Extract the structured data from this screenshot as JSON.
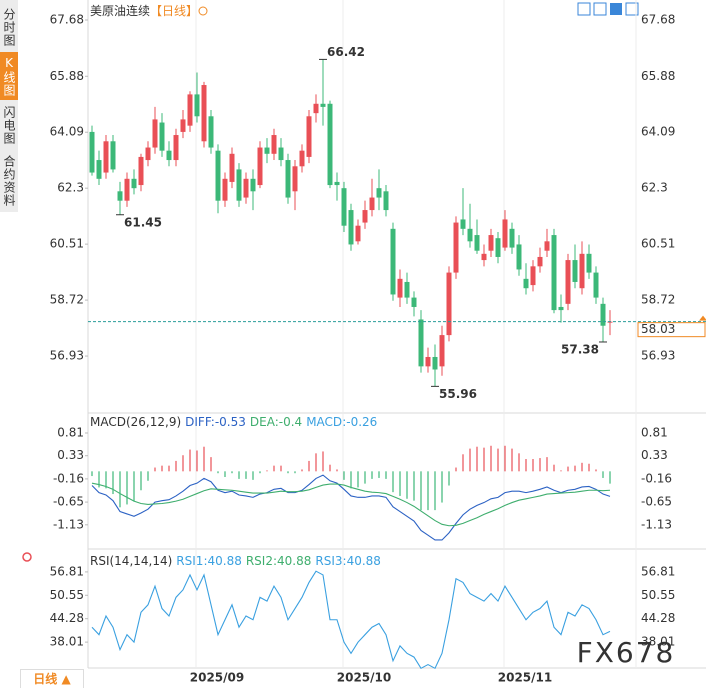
{
  "sidebar_tabs": [
    "分时图",
    "K线图",
    "闪电图",
    "合约资料"
  ],
  "period_tab": "日线 ▲",
  "watermark": "FX678",
  "legend_separator": ":",
  "chart_data": [
    {
      "type": "candlestick",
      "title": "美原油连续",
      "period": "【日线】",
      "up_color": "#e94f56",
      "down_color": "#3cb878",
      "categories": [
        null,
        null,
        null,
        null,
        null,
        null,
        null,
        null,
        null,
        null,
        null,
        null,
        null,
        null,
        null,
        "2025/09",
        null,
        null,
        null,
        null,
        null,
        null,
        null,
        null,
        null,
        null,
        null,
        null,
        null,
        null,
        null,
        null,
        null,
        null,
        null,
        null,
        "2025/10",
        null,
        null,
        null,
        null,
        null,
        null,
        null,
        null,
        null,
        null,
        null,
        null,
        null,
        null,
        null,
        null,
        null,
        null,
        null,
        null,
        null,
        null,
        "2025/11",
        null,
        null,
        null,
        null,
        null,
        null,
        null,
        null,
        null,
        null,
        null,
        null,
        null,
        null,
        null
      ],
      "candles": [
        [
          64.1,
          64.3,
          62.7,
          62.8
        ],
        [
          63.2,
          63.5,
          62.4,
          62.6
        ],
        [
          62.8,
          64.0,
          62.6,
          63.8
        ],
        [
          63.8,
          64.0,
          62.8,
          62.9
        ],
        [
          62.2,
          62.5,
          61.45,
          61.9
        ],
        [
          61.9,
          62.8,
          61.7,
          62.6
        ],
        [
          62.6,
          62.9,
          62.1,
          62.3
        ],
        [
          62.4,
          63.4,
          62.2,
          63.3
        ],
        [
          63.2,
          63.8,
          63.0,
          63.6
        ],
        [
          63.6,
          64.9,
          63.4,
          64.5
        ],
        [
          64.4,
          64.7,
          63.3,
          63.5
        ],
        [
          63.5,
          63.8,
          63.0,
          63.2
        ],
        [
          63.2,
          64.2,
          63.0,
          64.0
        ],
        [
          64.1,
          64.8,
          63.9,
          64.5
        ],
        [
          64.3,
          65.4,
          64.1,
          65.3
        ],
        [
          65.3,
          66.0,
          64.4,
          64.6
        ],
        [
          63.8,
          65.7,
          63.6,
          65.6
        ],
        [
          64.6,
          64.8,
          63.4,
          63.6
        ],
        [
          63.5,
          63.7,
          61.5,
          61.9
        ],
        [
          61.9,
          62.8,
          61.7,
          62.6
        ],
        [
          62.5,
          63.6,
          62.3,
          63.4
        ],
        [
          62.9,
          63.1,
          61.7,
          61.9
        ],
        [
          62.0,
          62.8,
          61.8,
          62.6
        ],
        [
          62.6,
          62.9,
          61.6,
          62.2
        ],
        [
          62.4,
          63.8,
          62.3,
          63.6
        ],
        [
          63.6,
          63.9,
          63.1,
          63.4
        ],
        [
          63.4,
          64.2,
          63.2,
          64.0
        ],
        [
          63.6,
          63.9,
          63.0,
          63.2
        ],
        [
          63.2,
          63.4,
          61.8,
          62.0
        ],
        [
          62.2,
          63.2,
          61.6,
          63.0
        ],
        [
          63.0,
          63.7,
          62.8,
          63.5
        ],
        [
          63.3,
          64.8,
          63.1,
          64.6
        ],
        [
          64.7,
          65.3,
          64.4,
          65.0
        ],
        [
          65.0,
          66.42,
          64.3,
          64.9
        ],
        [
          65.0,
          65.1,
          62.3,
          62.4
        ],
        [
          62.5,
          62.8,
          61.9,
          62.4
        ],
        [
          62.3,
          62.5,
          60.9,
          61.1
        ],
        [
          61.6,
          61.8,
          60.3,
          60.5
        ],
        [
          60.6,
          61.3,
          60.5,
          61.1
        ],
        [
          61.2,
          61.9,
          61.0,
          61.6
        ],
        [
          61.6,
          62.6,
          61.4,
          62.0
        ],
        [
          62.3,
          62.9,
          61.6,
          62.0
        ],
        [
          62.2,
          62.4,
          61.4,
          61.6
        ],
        [
          61.0,
          61.2,
          58.7,
          58.9
        ],
        [
          58.8,
          59.7,
          58.5,
          59.4
        ],
        [
          59.3,
          59.6,
          58.6,
          58.8
        ],
        [
          58.8,
          59.0,
          58.2,
          58.5
        ],
        [
          58.1,
          58.4,
          56.4,
          56.6
        ],
        [
          56.6,
          57.2,
          56.4,
          56.9
        ],
        [
          56.9,
          57.3,
          55.96,
          56.5
        ],
        [
          56.6,
          57.9,
          56.3,
          57.6
        ],
        [
          57.6,
          59.8,
          57.4,
          59.6
        ],
        [
          59.6,
          61.4,
          59.4,
          61.2
        ],
        [
          61.3,
          62.3,
          60.8,
          61.0
        ],
        [
          61.0,
          61.8,
          60.4,
          60.6
        ],
        [
          60.8,
          61.3,
          60.2,
          60.3
        ],
        [
          60.0,
          60.5,
          59.8,
          60.2
        ],
        [
          60.3,
          61.0,
          60.1,
          60.8
        ],
        [
          60.7,
          60.9,
          59.9,
          60.1
        ],
        [
          60.4,
          61.6,
          60.3,
          61.3
        ],
        [
          61.0,
          61.2,
          60.2,
          60.4
        ],
        [
          60.5,
          60.8,
          59.5,
          59.7
        ],
        [
          59.4,
          59.9,
          58.9,
          59.1
        ],
        [
          59.2,
          60.0,
          59.0,
          59.8
        ],
        [
          59.8,
          60.4,
          59.6,
          60.1
        ],
        [
          60.3,
          61.0,
          60.1,
          60.6
        ],
        [
          60.8,
          61.0,
          58.3,
          58.4
        ],
        [
          58.5,
          58.9,
          58.0,
          58.4
        ],
        [
          58.6,
          60.2,
          58.4,
          60.0
        ],
        [
          60.0,
          60.5,
          59.1,
          59.3
        ],
        [
          59.1,
          60.6,
          58.9,
          60.2
        ],
        [
          60.2,
          60.5,
          59.4,
          59.6
        ],
        [
          59.6,
          59.8,
          58.6,
          58.8
        ],
        [
          58.6,
          58.8,
          57.38,
          57.9
        ],
        [
          58.0,
          58.4,
          57.6,
          58.03
        ]
      ],
      "ylim": [
        55.14,
        68.16
      ],
      "yticks": [
        67.68,
        65.88,
        64.09,
        62.3,
        60.51,
        58.72,
        56.93
      ],
      "last_price": 58.03,
      "last_price_color": "#f08a24",
      "annotations": [
        {
          "value": 66.42,
          "color": "#e94f56"
        },
        {
          "value": 61.45,
          "color": "#3cb878"
        },
        {
          "value": 55.96,
          "color": "#3cb878"
        },
        {
          "value": 57.38,
          "color": "#3cb878"
        }
      ]
    },
    {
      "type": "macd",
      "title": "MACD(26,12,9)",
      "ylim": [
        -1.62,
        1.19
      ],
      "yticks": [
        0.81,
        0.33,
        -0.16,
        -0.65,
        -1.13
      ],
      "up_color": "#e94f56",
      "down_color": "#3cb878",
      "series": [
        {
          "name": "DIFF",
          "color": "#2c62c4",
          "values": [
            -0.3,
            -0.45,
            -0.5,
            -0.62,
            -0.85,
            -0.9,
            -0.95,
            -0.88,
            -0.8,
            -0.65,
            -0.62,
            -0.6,
            -0.52,
            -0.42,
            -0.3,
            -0.25,
            -0.15,
            -0.22,
            -0.4,
            -0.45,
            -0.42,
            -0.5,
            -0.52,
            -0.55,
            -0.48,
            -0.45,
            -0.38,
            -0.36,
            -0.45,
            -0.45,
            -0.4,
            -0.28,
            -0.15,
            -0.08,
            -0.2,
            -0.25,
            -0.38,
            -0.52,
            -0.55,
            -0.55,
            -0.52,
            -0.52,
            -0.55,
            -0.75,
            -0.85,
            -0.95,
            -1.05,
            -1.25,
            -1.35,
            -1.45,
            -1.45,
            -1.3,
            -1.1,
            -0.92,
            -0.8,
            -0.72,
            -0.66,
            -0.58,
            -0.55,
            -0.45,
            -0.42,
            -0.42,
            -0.45,
            -0.42,
            -0.38,
            -0.33,
            -0.4,
            -0.45,
            -0.4,
            -0.38,
            -0.33,
            -0.32,
            -0.38,
            -0.48,
            -0.53
          ]
        },
        {
          "name": "DEA",
          "color": "#3fae6e",
          "values": [
            -0.25,
            -0.28,
            -0.32,
            -0.38,
            -0.47,
            -0.55,
            -0.63,
            -0.68,
            -0.7,
            -0.69,
            -0.68,
            -0.66,
            -0.63,
            -0.59,
            -0.53,
            -0.47,
            -0.41,
            -0.37,
            -0.38,
            -0.39,
            -0.4,
            -0.42,
            -0.44,
            -0.46,
            -0.46,
            -0.46,
            -0.44,
            -0.42,
            -0.43,
            -0.43,
            -0.42,
            -0.39,
            -0.34,
            -0.29,
            -0.27,
            -0.27,
            -0.29,
            -0.34,
            -0.38,
            -0.42,
            -0.44,
            -0.45,
            -0.47,
            -0.53,
            -0.59,
            -0.66,
            -0.74,
            -0.84,
            -0.94,
            -1.04,
            -1.12,
            -1.15,
            -1.14,
            -1.1,
            -1.04,
            -0.98,
            -0.91,
            -0.85,
            -0.79,
            -0.72,
            -0.66,
            -0.61,
            -0.58,
            -0.55,
            -0.52,
            -0.48,
            -0.47,
            -0.46,
            -0.45,
            -0.44,
            -0.42,
            -0.4,
            -0.4,
            -0.41,
            -0.4
          ]
        },
        {
          "name": "MACD",
          "color": "#3aa0e0",
          "kind": "bar",
          "values": [
            -0.1,
            -0.34,
            -0.36,
            -0.48,
            -0.76,
            -0.7,
            -0.64,
            -0.4,
            -0.2,
            0.08,
            0.12,
            0.12,
            0.22,
            0.34,
            0.46,
            0.44,
            0.52,
            0.3,
            -0.04,
            -0.12,
            -0.04,
            -0.16,
            -0.16,
            -0.18,
            -0.04,
            0.02,
            0.12,
            0.12,
            -0.04,
            -0.04,
            0.04,
            0.22,
            0.38,
            0.42,
            0.14,
            0.04,
            -0.18,
            -0.36,
            -0.34,
            -0.26,
            -0.16,
            -0.14,
            -0.16,
            -0.44,
            -0.52,
            -0.58,
            -0.62,
            -0.82,
            -0.82,
            -0.82,
            -0.66,
            -0.3,
            0.08,
            0.36,
            0.48,
            0.52,
            0.5,
            0.54,
            0.48,
            0.54,
            0.48,
            0.38,
            0.26,
            0.26,
            0.28,
            0.3,
            0.14,
            0.02,
            0.1,
            0.12,
            0.18,
            0.16,
            0.04,
            -0.14,
            -0.26
          ]
        }
      ]
    },
    {
      "type": "rsi",
      "title": "RSI(14,14,14)",
      "ylim": [
        31.08,
        62.14
      ],
      "yticks": [
        56.81,
        50.55,
        44.28,
        38.01
      ],
      "series": [
        {
          "name": "RSI1",
          "color": "#3aa0e0",
          "values": [
            42,
            40,
            45,
            42,
            36,
            40,
            38,
            46,
            48,
            53,
            47,
            45,
            50,
            52,
            56,
            52,
            56,
            48,
            40,
            44,
            48,
            42,
            45,
            44,
            50,
            49,
            53,
            50,
            44,
            47,
            50,
            54,
            57,
            56,
            44,
            44,
            38,
            35,
            38,
            40,
            42,
            43,
            40,
            33,
            37,
            35,
            34,
            31,
            32,
            31,
            35,
            44,
            55,
            54,
            51,
            50,
            49,
            51,
            49,
            53,
            50,
            47,
            44,
            46,
            47,
            49,
            42,
            40,
            46,
            45,
            48,
            47,
            44,
            40,
            40.88
          ]
        },
        {
          "name": "RSI2",
          "color": "#3fae6e",
          "latest": 40.88
        },
        {
          "name": "RSI3",
          "color": "#3aa0e0",
          "latest": 40.88
        }
      ]
    }
  ]
}
